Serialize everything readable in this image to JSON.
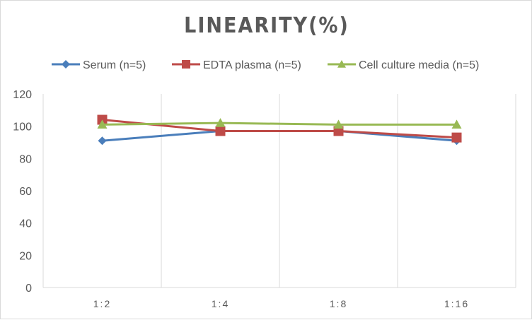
{
  "chart_data": {
    "type": "line",
    "title": "LINEARITY(%)",
    "categories": [
      "1:2",
      "1:4",
      "1:8",
      "1:16"
    ],
    "series": [
      {
        "name": "Serum (n=5)",
        "values": [
          91,
          97,
          97,
          91
        ],
        "color": "#4a7ebb",
        "marker": "diamond"
      },
      {
        "name": "EDTA plasma (n=5)",
        "values": [
          104,
          97,
          97,
          93
        ],
        "color": "#be4b48",
        "marker": "square"
      },
      {
        "name": "Cell culture media (n=5)",
        "values": [
          101,
          102,
          101,
          101
        ],
        "color": "#98b954",
        "marker": "triangle"
      }
    ],
    "ylim": [
      0,
      120
    ],
    "yticks": [
      0,
      20,
      40,
      60,
      80,
      100,
      120
    ],
    "grid": "vertical category gridlines",
    "legend": "top"
  }
}
